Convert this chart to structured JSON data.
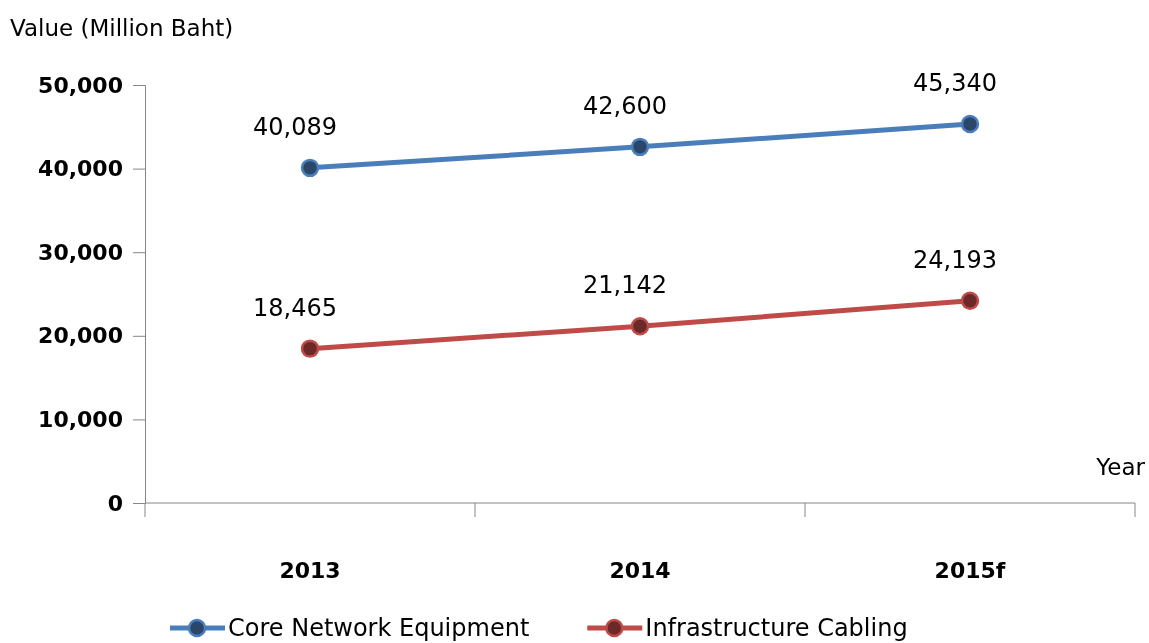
{
  "chart_data": {
    "type": "line",
    "ylabel": "Value (Million Baht)",
    "xlabel": "Year",
    "categories": [
      "2013",
      "2014",
      "2015f"
    ],
    "series": [
      {
        "name": "Core Network Equipment",
        "color": "#4a7ebb",
        "values": [
          40089,
          42600,
          45340
        ],
        "value_labels": [
          "40,089",
          "42,600",
          "45,340"
        ]
      },
      {
        "name": "Infrastructure Cabling",
        "color": "#be4b48",
        "values": [
          18465,
          21142,
          24193
        ],
        "value_labels": [
          "18,465",
          "21,142",
          "24,193"
        ]
      }
    ],
    "ylim": [
      0,
      50000
    ],
    "yticks": [
      {
        "value": 0,
        "label": "0"
      },
      {
        "value": 10000,
        "label": "10,000"
      },
      {
        "value": 20000,
        "label": "20,000"
      },
      {
        "value": 30000,
        "label": "30,000"
      },
      {
        "value": 40000,
        "label": "40,000"
      },
      {
        "value": 50000,
        "label": "50,000"
      }
    ],
    "grid": false,
    "legend": "bottom",
    "marker": "circle",
    "line_style": "solid"
  }
}
